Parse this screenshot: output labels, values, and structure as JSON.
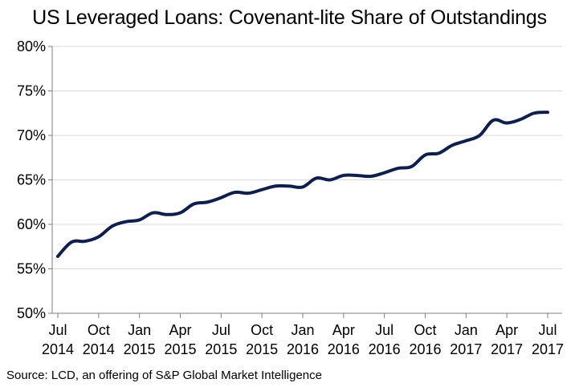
{
  "chart_data": {
    "type": "line",
    "title": "US Leveraged Loans: Covenant-lite Share of Outstandings",
    "xlabel": "",
    "ylabel": "",
    "ylim": [
      50,
      80
    ],
    "y_ticks": [
      "50%",
      "55%",
      "60%",
      "65%",
      "70%",
      "75%",
      "80%"
    ],
    "y_tick_values": [
      50,
      55,
      60,
      65,
      70,
      75,
      80
    ],
    "x_ticks": [
      {
        "month": "Jul",
        "year": "2014",
        "index": 0
      },
      {
        "month": "Oct",
        "year": "2014",
        "index": 3
      },
      {
        "month": "Jan",
        "year": "2015",
        "index": 6
      },
      {
        "month": "Apr",
        "year": "2015",
        "index": 9
      },
      {
        "month": "Jul",
        "year": "2015",
        "index": 12
      },
      {
        "month": "Oct",
        "year": "2015",
        "index": 15
      },
      {
        "month": "Jan",
        "year": "2016",
        "index": 18
      },
      {
        "month": "Apr",
        "year": "2016",
        "index": 21
      },
      {
        "month": "Jul",
        "year": "2016",
        "index": 24
      },
      {
        "month": "Oct",
        "year": "2016",
        "index": 27
      },
      {
        "month": "Jan",
        "year": "2017",
        "index": 30
      },
      {
        "month": "Apr",
        "year": "2017",
        "index": 33
      },
      {
        "month": "Jul",
        "year": "2017",
        "index": 36
      }
    ],
    "x_count": 37,
    "grid": true,
    "legend": "none",
    "line_color": "#0f1f4b",
    "series": [
      {
        "values": [
          56.4,
          58.0,
          58.1,
          58.6,
          59.8,
          60.3,
          60.5,
          61.3,
          61.1,
          61.3,
          62.3,
          62.5,
          63.0,
          63.6,
          63.5,
          63.9,
          64.3,
          64.3,
          64.2,
          65.2,
          65.0,
          65.5,
          65.5,
          65.4,
          65.8,
          66.3,
          66.5,
          67.8,
          68.0,
          68.9,
          69.4,
          70.0,
          71.7,
          71.4,
          71.8,
          72.5,
          72.6
        ]
      }
    ]
  },
  "footer": {
    "source": "Source: LCD, an offering of S&P Global Market Intelligence"
  }
}
